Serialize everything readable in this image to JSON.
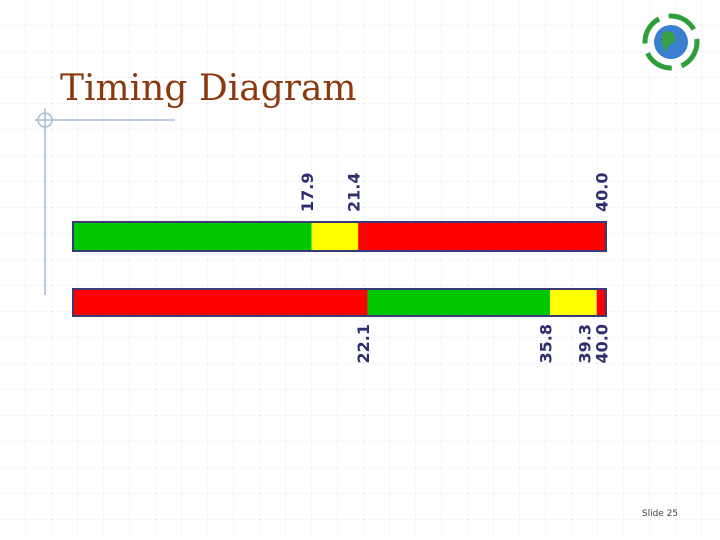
{
  "chart_data": {
    "type": "timing",
    "title": "Timing Diagram",
    "xlim": [
      0,
      40
    ],
    "rows": [
      {
        "boundaries": [
          17.9,
          21.4,
          {
            "value": 40,
            "label": "40.0"
          }
        ],
        "colors": [
          "#00c800",
          "#ffff00",
          "#ff0000"
        ],
        "label_side": "above"
      },
      {
        "boundaries": [
          22.1,
          35.8,
          39.3,
          {
            "value": 40,
            "label": "40.0"
          }
        ],
        "colors": [
          "#ff0000",
          "#00c800",
          "#ffff00",
          "#ff0000"
        ],
        "label_side": "below"
      }
    ]
  },
  "footer": {
    "slide": "Slide 25"
  }
}
